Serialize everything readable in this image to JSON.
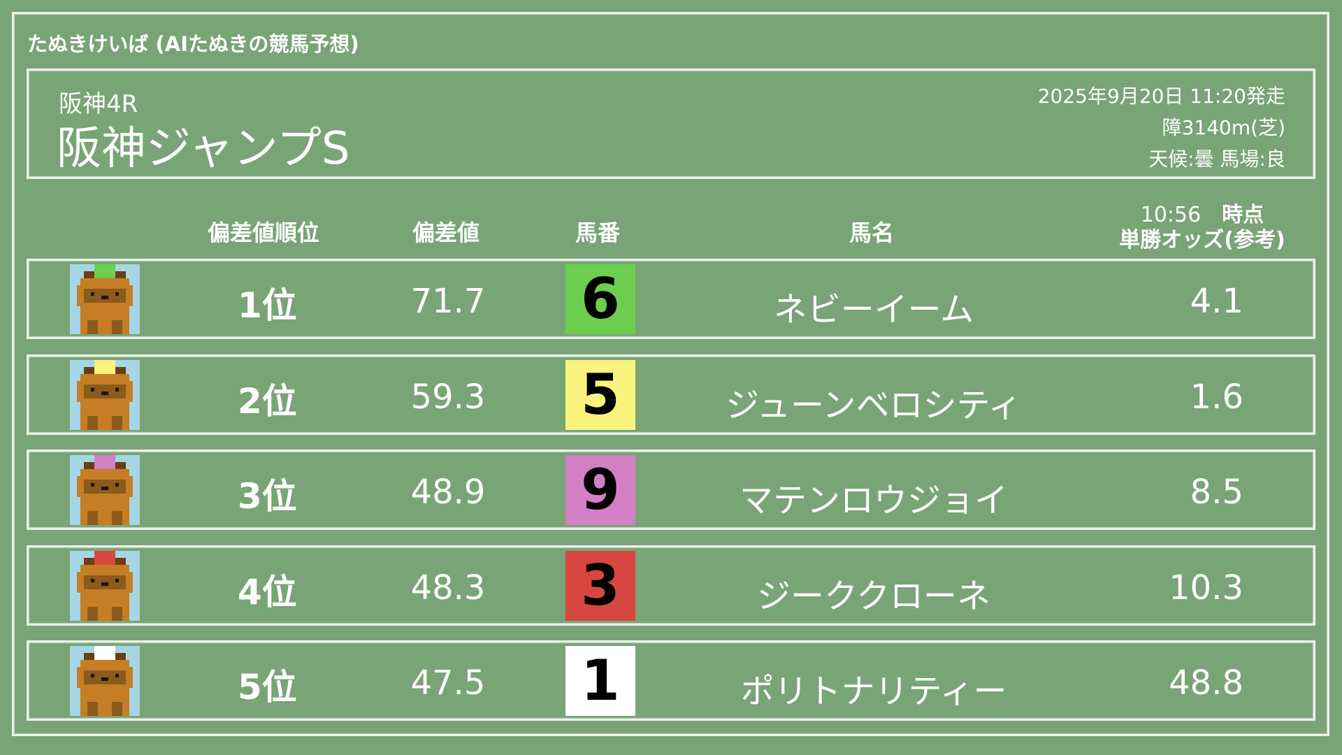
{
  "app_title": "たぬきけいば (AIたぬきの競馬予想)",
  "race": {
    "race_no": "阪神4R",
    "name": "阪神ジャンプS",
    "start": "2025年9月20日 11:20発走",
    "course": "障3140m(芝)",
    "conditions": "天候:曇 馬場:良"
  },
  "columns": {
    "rank": "偏差値順位",
    "deviation": "偏差値",
    "number": "馬番",
    "horse": "馬名",
    "odds_time": "10:56",
    "odds_time_suffix": "時点",
    "odds": "単勝オッズ(参考)"
  },
  "rows": [
    {
      "rank": "1位",
      "deviation": "71.7",
      "number": "6",
      "horse": "ネビーイーム",
      "odds": "4.1",
      "color": "#6ccd4e",
      "icon": "tanuki-icon"
    },
    {
      "rank": "2位",
      "deviation": "59.3",
      "number": "5",
      "horse": "ジューンベロシティ",
      "odds": "1.6",
      "color": "#f8f47e",
      "icon": "tanuki-icon"
    },
    {
      "rank": "3位",
      "deviation": "48.9",
      "number": "9",
      "horse": "マテンロウジョイ",
      "odds": "8.5",
      "color": "#d37fc6",
      "icon": "tanuki-icon"
    },
    {
      "rank": "4位",
      "deviation": "48.3",
      "number": "3",
      "horse": "ジーククローネ",
      "odds": "10.3",
      "color": "#d8473f",
      "icon": "tanuki-icon"
    },
    {
      "rank": "5位",
      "deviation": "47.5",
      "number": "1",
      "horse": "ポリトナリティー",
      "odds": "48.8",
      "color": "#ffffff",
      "icon": "tanuki-icon"
    }
  ]
}
